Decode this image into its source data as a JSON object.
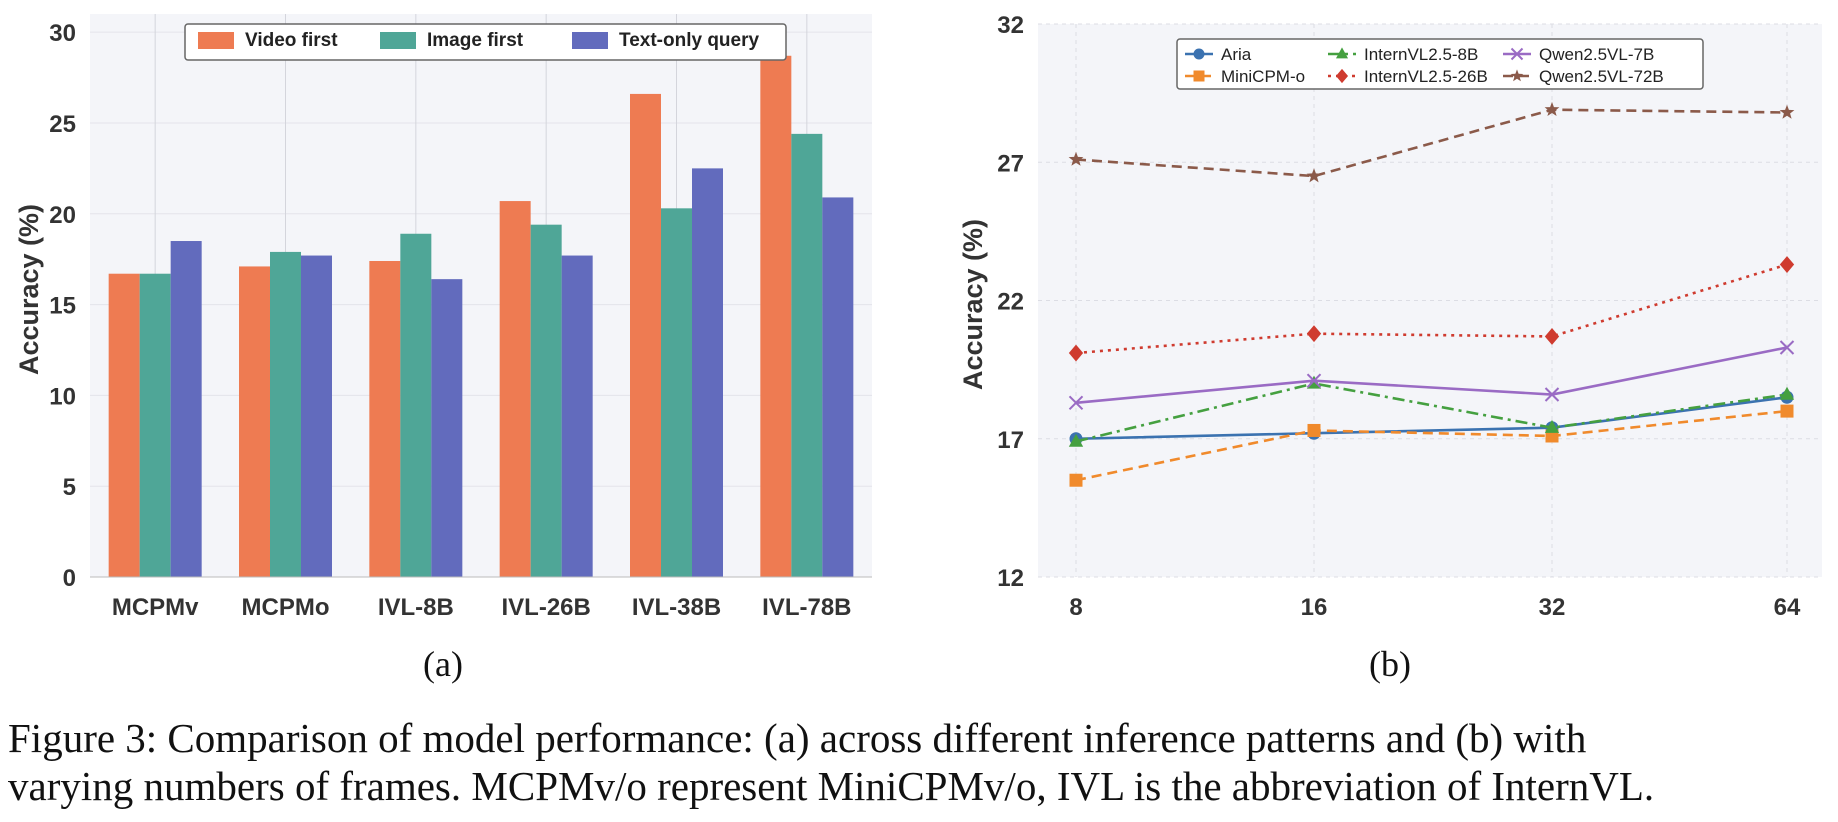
{
  "chart_data": [
    {
      "type": "bar",
      "panel": "(a)",
      "ylabel": "Accuracy (%)",
      "ylim": [
        0,
        31
      ],
      "yticks": [
        0,
        5,
        10,
        15,
        20,
        25,
        30
      ],
      "categories": [
        "MCPMv",
        "MCPMo",
        "IVL-8B",
        "IVL-26B",
        "IVL-38B",
        "IVL-78B"
      ],
      "series": [
        {
          "name": "Video first",
          "color": "#ee7b52",
          "values": [
            16.7,
            17.1,
            17.4,
            20.7,
            26.6,
            28.7
          ]
        },
        {
          "name": "Image first",
          "color": "#4fa697",
          "values": [
            16.7,
            17.9,
            18.9,
            19.4,
            20.3,
            24.4
          ]
        },
        {
          "name": "Text-only query",
          "color": "#626bbd",
          "values": [
            18.5,
            17.7,
            16.4,
            17.7,
            22.5,
            20.9
          ]
        }
      ],
      "grid": true,
      "legend": "top"
    },
    {
      "type": "line",
      "panel": "(b)",
      "ylabel": "Accuracy (%)",
      "ylim": [
        12,
        32
      ],
      "yticks": [
        12,
        17,
        22,
        27,
        32
      ],
      "x": [
        "8",
        "16",
        "32",
        "64"
      ],
      "series": [
        {
          "name": "Aria",
          "color": "#3b72b0",
          "marker": "circle",
          "dash": "solid",
          "values": [
            17.0,
            17.2,
            17.4,
            18.5
          ]
        },
        {
          "name": "MiniCPM-o",
          "color": "#f08a2c",
          "marker": "square",
          "dash": "dashed",
          "values": [
            15.5,
            17.3,
            17.1,
            18.0
          ]
        },
        {
          "name": "InternVL2.5-8B",
          "color": "#45a040",
          "marker": "triangle",
          "dash": "dashdot",
          "values": [
            16.9,
            19.0,
            17.4,
            18.6
          ]
        },
        {
          "name": "InternVL2.5-26B",
          "color": "#cf3b2f",
          "marker": "diamond",
          "dash": "dotted",
          "values": [
            20.1,
            20.8,
            20.7,
            23.3
          ]
        },
        {
          "name": "Qwen2.5VL-7B",
          "color": "#9a6bc4",
          "marker": "x",
          "dash": "solid",
          "values": [
            18.3,
            19.1,
            18.6,
            20.3
          ]
        },
        {
          "name": "Qwen2.5VL-72B",
          "color": "#8b5a4a",
          "marker": "star",
          "dash": "dashed",
          "values": [
            27.1,
            26.5,
            28.9,
            28.8
          ]
        }
      ],
      "grid": true,
      "legend": "top"
    }
  ],
  "subfigure_labels": [
    "(a)",
    "(b)"
  ],
  "caption": {
    "line1": "Figure 3: Comparison of model performance: (a) across different inference patterns and (b) with",
    "line2": "varying numbers of frames. MCPMv/o represent MiniCPMv/o, IVL is the abbreviation of InternVL."
  }
}
